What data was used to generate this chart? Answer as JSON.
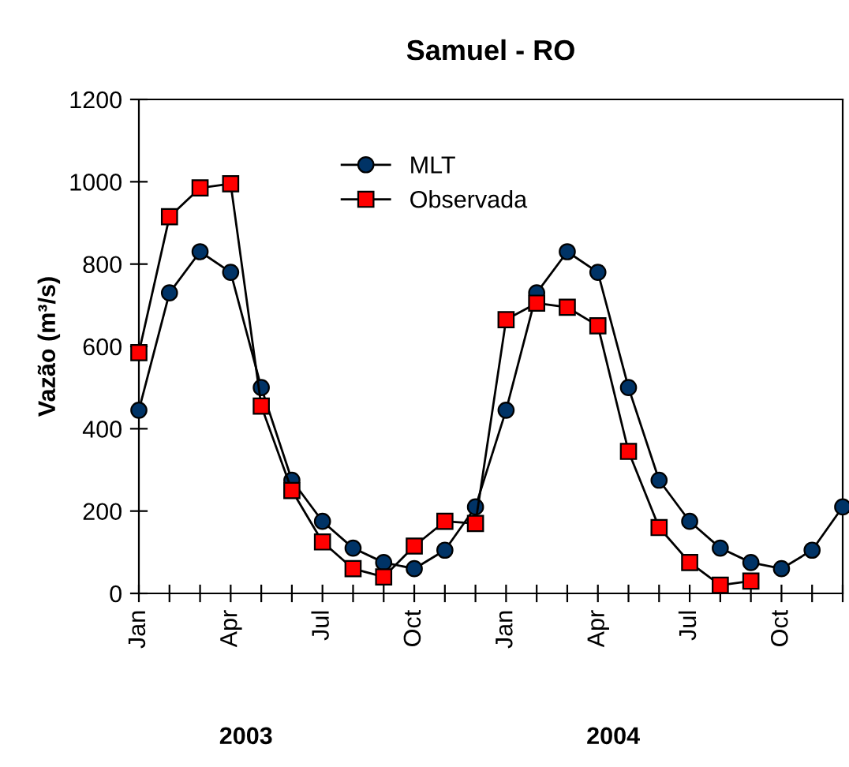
{
  "chart_data": {
    "type": "line",
    "title": "Samuel - RO",
    "ylabel": "Vazão (m³/s)",
    "categories": [
      "Jan",
      null,
      null,
      "Apr",
      null,
      null,
      "Jul",
      null,
      null,
      "Oct",
      null,
      null,
      "Jan",
      null,
      null,
      "Apr",
      null,
      null,
      "Jul",
      null,
      null,
      "Oct",
      null,
      null
    ],
    "series": [
      {
        "name": "MLT",
        "color": "#003366",
        "marker": "circle",
        "values": [
          445,
          730,
          830,
          780,
          500,
          275,
          175,
          110,
          75,
          60,
          105,
          210,
          445,
          730,
          830,
          780,
          500,
          275,
          175,
          110,
          75,
          60,
          105,
          210
        ]
      },
      {
        "name": "Observada",
        "color": "#ff0000",
        "marker": "square",
        "values": [
          585,
          915,
          985,
          995,
          455,
          250,
          125,
          60,
          40,
          115,
          175,
          170,
          665,
          705,
          695,
          650,
          345,
          160,
          75,
          20,
          30,
          null,
          null,
          null
        ]
      }
    ],
    "ylim": [
      0,
      1200
    ],
    "yticks": [
      0,
      200,
      400,
      600,
      800,
      1000,
      1200
    ],
    "grid": false,
    "legend": "top",
    "line_style": "solid",
    "annotations": [
      "2003",
      "2004"
    ]
  }
}
